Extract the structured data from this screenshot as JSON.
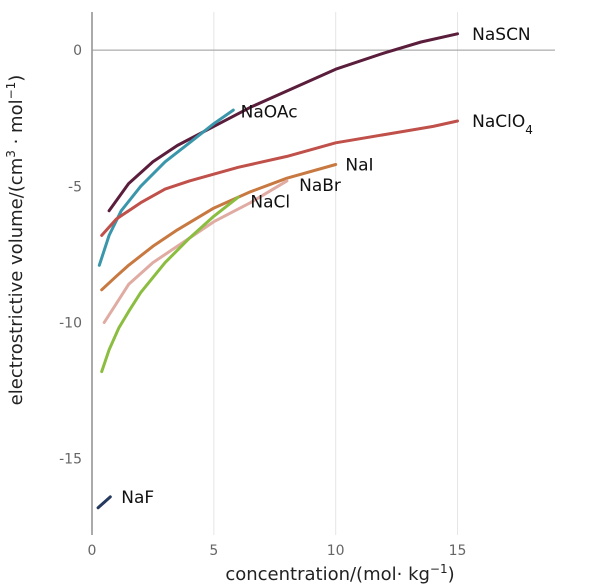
{
  "chart_data": {
    "type": "line",
    "title": "",
    "xlabel": "concentration/(mol· kg",
    "xlabel_sup": "−1",
    "xlabel_end": ")",
    "ylabel": "electrostrictive volume/(cm",
    "ylabel_sup1": "3",
    "ylabel_mid": " · mol",
    "ylabel_sup2": "−1",
    "ylabel_end": ")",
    "xlim": [
      0,
      19
    ],
    "ylim": [
      -17.8,
      1.4
    ],
    "x_ticks": [
      0,
      5,
      10,
      15
    ],
    "y_ticks": [
      0,
      -5,
      -10,
      -15
    ],
    "vertical_grid": true,
    "zero_line": true,
    "legend": "inline labels at line ends",
    "series": [
      {
        "name": "NaSCN",
        "color": "#5a1e3c",
        "x": [
          0.7,
          1.5,
          2.5,
          3.5,
          5,
          6.5,
          8,
          10,
          12,
          13.5,
          15
        ],
        "y": [
          -5.9,
          -4.9,
          -4.1,
          -3.5,
          -2.8,
          -2.1,
          -1.5,
          -0.7,
          -0.1,
          0.3,
          0.6
        ]
      },
      {
        "name": "NaOAc",
        "color": "#3a97ab",
        "x": [
          0.3,
          0.7,
          1.2,
          2,
          3,
          4,
          5,
          5.8
        ],
        "y": [
          -7.9,
          -6.8,
          -5.9,
          -5.0,
          -4.1,
          -3.4,
          -2.7,
          -2.2
        ],
        "label_x": 6.1,
        "label_y": -2.25
      },
      {
        "name": "NaClO",
        "name_sub": "4",
        "color": "#c0504a",
        "x": [
          0.4,
          1,
          2,
          3,
          4,
          6,
          8,
          10,
          12,
          14,
          15
        ],
        "y": [
          -6.8,
          -6.2,
          -5.6,
          -5.1,
          -4.8,
          -4.3,
          -3.9,
          -3.4,
          -3.1,
          -2.8,
          -2.6
        ]
      },
      {
        "name": "NaI",
        "color": "#c87941",
        "x": [
          0.4,
          1,
          1.5,
          2.5,
          3.5,
          5,
          6.5,
          8,
          10
        ],
        "y": [
          -8.8,
          -8.3,
          -7.9,
          -7.2,
          -6.6,
          -5.8,
          -5.2,
          -4.7,
          -4.2
        ],
        "label_x": 10.4,
        "label_y": -4.2
      },
      {
        "name": "NaBr",
        "color": "#e0aba2",
        "x": [
          0.5,
          1,
          1.5,
          2.5,
          3.5,
          5,
          6.5,
          8
        ],
        "y": [
          -10.0,
          -9.3,
          -8.6,
          -7.8,
          -7.2,
          -6.3,
          -5.6,
          -4.8
        ],
        "label_x": 8.5,
        "label_y": -4.95
      },
      {
        "name": "NaCl",
        "color": "#8bbd40",
        "x": [
          0.4,
          0.7,
          1.1,
          1.5,
          2,
          3,
          4,
          5,
          6
        ],
        "y": [
          -11.8,
          -11.0,
          -10.2,
          -9.6,
          -8.9,
          -7.8,
          -6.9,
          -6.1,
          -5.4
        ],
        "label_x": 6.5,
        "label_y": -5.55
      },
      {
        "name": "NaF",
        "color": "#253a5e",
        "x": [
          0.25,
          0.75
        ],
        "y": [
          -16.8,
          -16.4
        ],
        "label_x": 1.2,
        "label_y": -16.4
      }
    ]
  }
}
